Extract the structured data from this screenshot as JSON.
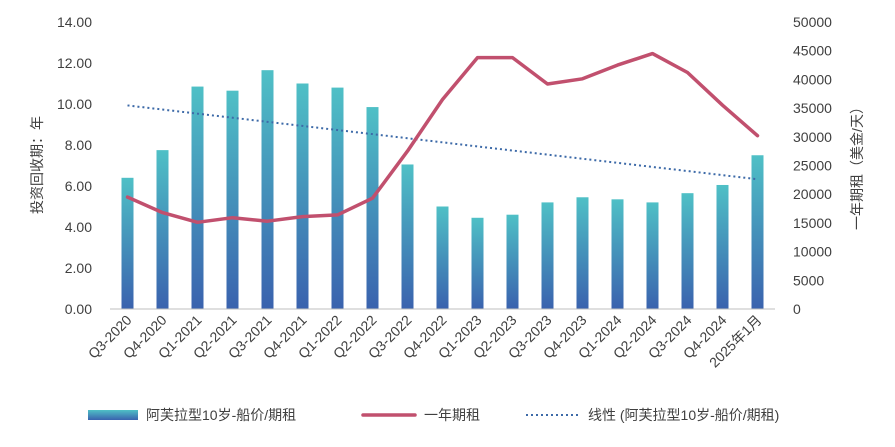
{
  "chart_data": {
    "type": "bar",
    "categories": [
      "Q3-2020",
      "Q4-2020",
      "Q1-2021",
      "Q2-2021",
      "Q3-2021",
      "Q4-2021",
      "Q1-2022",
      "Q2-2022",
      "Q3-2022",
      "Q4-2022",
      "Q1-2023",
      "Q2-2023",
      "Q3-2023",
      "Q4-2023",
      "Q1-2024",
      "Q2-2024",
      "Q3-2024",
      "Q4-2024",
      "2025年1月"
    ],
    "series": [
      {
        "name": "阿芙拉型10岁-船价/期租",
        "kind": "bar",
        "axis": "left",
        "values": [
          6.4,
          7.75,
          10.85,
          10.65,
          11.65,
          11.0,
          10.8,
          9.85,
          7.05,
          5.0,
          4.45,
          4.6,
          5.2,
          5.45,
          5.35,
          5.2,
          5.65,
          6.05,
          7.5
        ]
      },
      {
        "name": "一年期租",
        "kind": "line",
        "axis": "right",
        "values": [
          19500,
          16800,
          15100,
          15900,
          15300,
          16100,
          16400,
          19300,
          27500,
          36500,
          43800,
          43800,
          39200,
          40100,
          42500,
          44500,
          41200,
          35500,
          30200
        ]
      },
      {
        "name": "线性 (阿芙拉型10岁-船价/期租)",
        "kind": "trendline",
        "axis": "left",
        "values": [
          9.93,
          9.73,
          9.53,
          9.33,
          9.13,
          8.93,
          8.73,
          8.53,
          8.33,
          8.13,
          7.93,
          7.73,
          7.53,
          7.33,
          7.13,
          6.93,
          6.73,
          6.53,
          6.33
        ]
      }
    ],
    "left_axis": {
      "label": "投资回收期：年",
      "min": 0,
      "max": 14,
      "step": 2,
      "ticks": [
        "0.00",
        "2.00",
        "4.00",
        "6.00",
        "8.00",
        "10.00",
        "12.00",
        "14.00"
      ]
    },
    "right_axis": {
      "label": "一年期租（美金/天）",
      "min": 0,
      "max": 50000,
      "step": 5000,
      "ticks": [
        "0",
        "5000",
        "10000",
        "15000",
        "20000",
        "25000",
        "30000",
        "35000",
        "40000",
        "45000",
        "50000"
      ]
    },
    "grid": false,
    "legend_position": "bottom",
    "colors": {
      "bar_top": "#4bbcc5",
      "bar_bottom": "#3a64b0",
      "line": "#c1506e",
      "trend": "#3d6aa8",
      "text": "#404040"
    }
  }
}
